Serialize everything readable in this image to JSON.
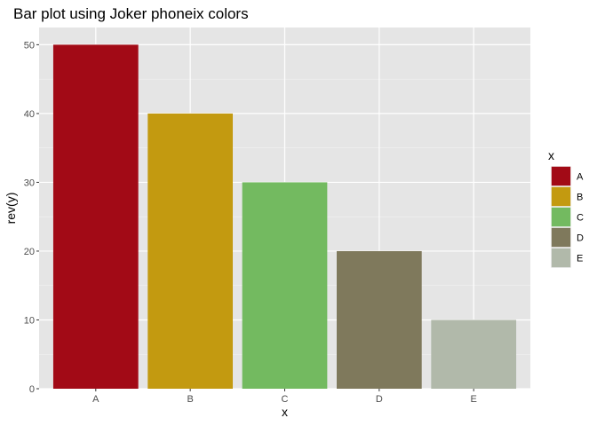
{
  "chart_data": {
    "type": "bar",
    "title": "Bar plot using Joker phoneix colors",
    "xlabel": "x",
    "ylabel": "rev(y)",
    "categories": [
      "A",
      "B",
      "C",
      "D",
      "E"
    ],
    "values": [
      50,
      40,
      30,
      20,
      10
    ],
    "colors": [
      "#A20A16",
      "#C39A10",
      "#73BA60",
      "#7F795C",
      "#B1B9AA"
    ],
    "ylim": [
      0,
      52.5
    ],
    "yticks": [
      0,
      10,
      20,
      30,
      40,
      50
    ],
    "grid": true,
    "legend": {
      "title": "x",
      "position": "right",
      "entries": [
        "A",
        "B",
        "C",
        "D",
        "E"
      ]
    }
  }
}
